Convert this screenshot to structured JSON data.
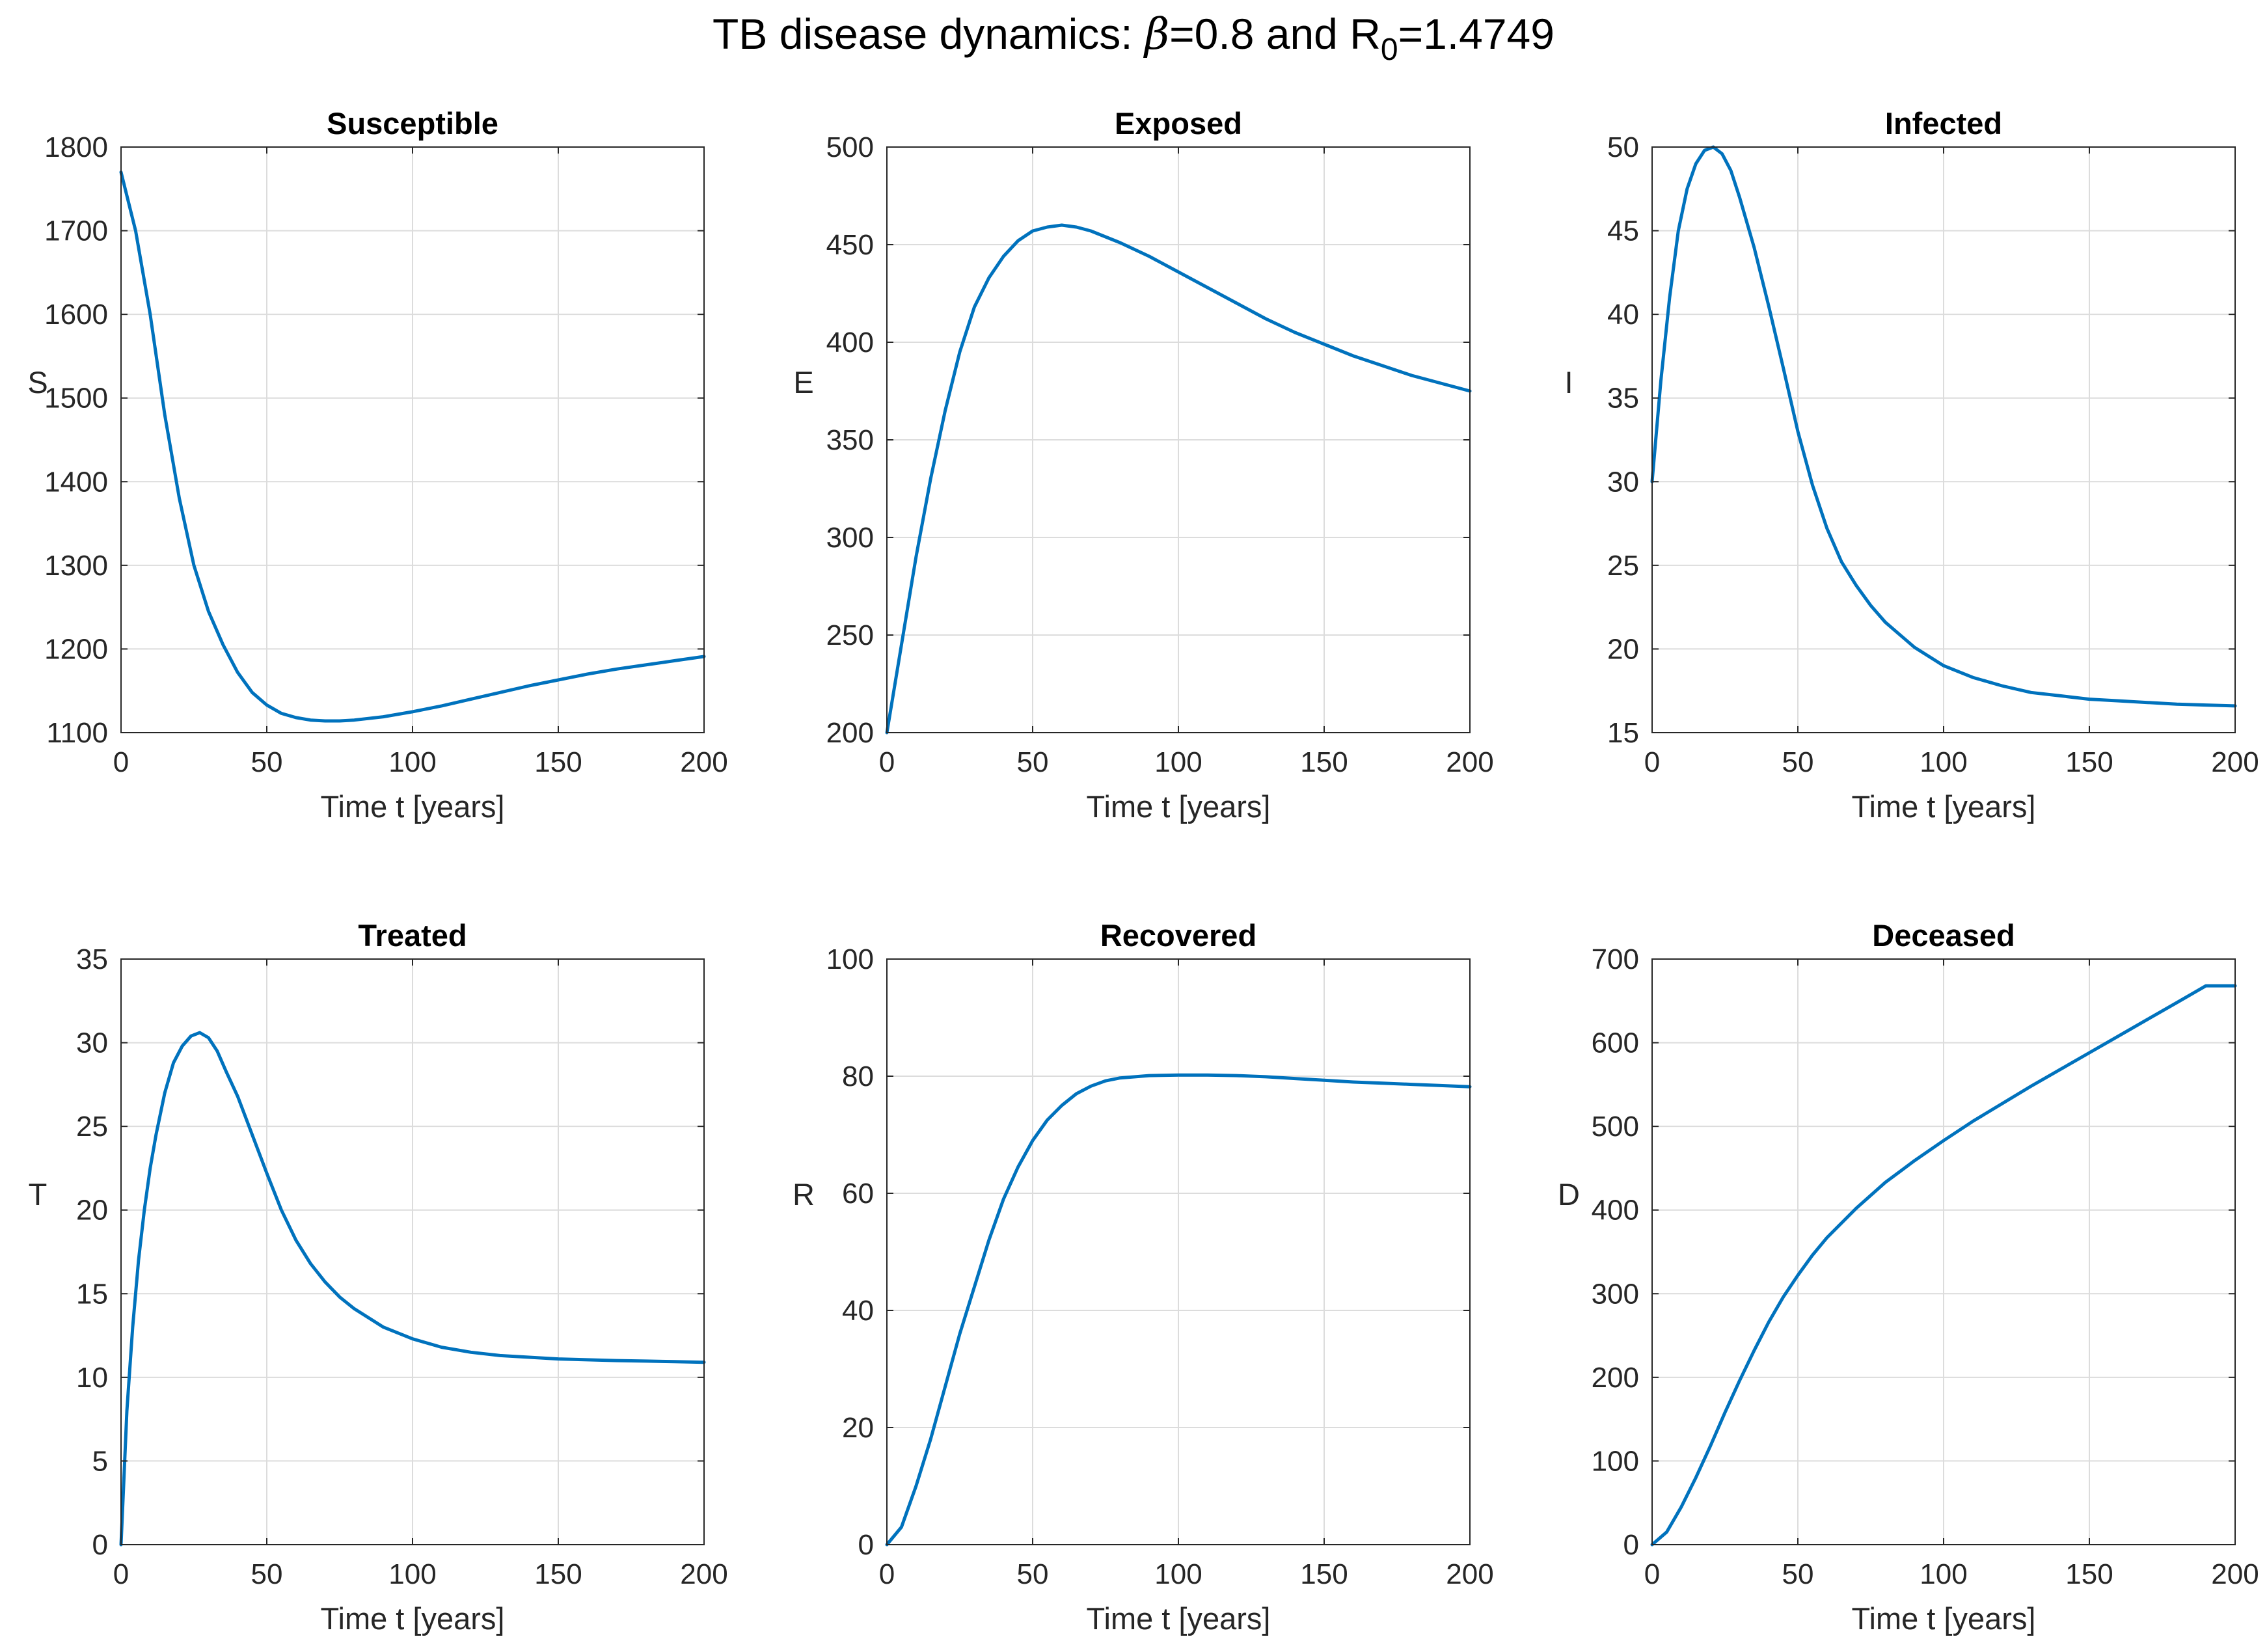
{
  "figure": {
    "title_prefix": "TB disease dynamics: ",
    "beta_symbol": "β",
    "title_mid": "=0.8 and R",
    "r0_subscript": "0",
    "title_suffix": "=1.4749"
  },
  "colors": {
    "line": "#0072BD",
    "axis": "#262626",
    "grid": "#dcdcdc",
    "background": "#ffffff"
  },
  "chart_data": [
    {
      "type": "line",
      "title": "Susceptible",
      "xlabel": "Time t [years]",
      "ylabel": "S",
      "xlim": [
        0,
        200
      ],
      "ylim": [
        1100,
        1800
      ],
      "xticks": [
        0,
        50,
        100,
        150,
        200
      ],
      "yticks": [
        1100,
        1200,
        1300,
        1400,
        1500,
        1600,
        1700,
        1800
      ],
      "grid": true,
      "series": [
        {
          "name": "S",
          "x": [
            0,
            5,
            10,
            15,
            20,
            25,
            30,
            35,
            40,
            45,
            50,
            55,
            60,
            65,
            70,
            75,
            80,
            90,
            100,
            110,
            120,
            130,
            140,
            150,
            160,
            170,
            180,
            190,
            200
          ],
          "values": [
            1770,
            1700,
            1600,
            1480,
            1380,
            1300,
            1245,
            1205,
            1172,
            1148,
            1133,
            1123,
            1118,
            1115,
            1114,
            1114,
            1115,
            1119,
            1125,
            1132,
            1140,
            1148,
            1156,
            1163,
            1170,
            1176,
            1181,
            1186,
            1191
          ]
        }
      ]
    },
    {
      "type": "line",
      "title": "Exposed",
      "xlabel": "Time t [years]",
      "ylabel": "E",
      "xlim": [
        0,
        200
      ],
      "ylim": [
        200,
        500
      ],
      "xticks": [
        0,
        50,
        100,
        150,
        200
      ],
      "yticks": [
        200,
        250,
        300,
        350,
        400,
        450,
        500
      ],
      "grid": true,
      "series": [
        {
          "name": "E",
          "x": [
            0,
            5,
            10,
            15,
            20,
            25,
            30,
            35,
            40,
            45,
            50,
            55,
            60,
            65,
            70,
            80,
            90,
            100,
            110,
            120,
            130,
            140,
            150,
            160,
            170,
            180,
            190,
            200
          ],
          "values": [
            200,
            245,
            290,
            330,
            365,
            395,
            418,
            433,
            444,
            452,
            457,
            459,
            460,
            459,
            457,
            451,
            444,
            436,
            428,
            420,
            412,
            405,
            399,
            393,
            388,
            383,
            379,
            375
          ]
        }
      ]
    },
    {
      "type": "line",
      "title": "Infected",
      "xlabel": "Time t [years]",
      "ylabel": "I",
      "xlim": [
        0,
        200
      ],
      "ylim": [
        15,
        50
      ],
      "xticks": [
        0,
        50,
        100,
        150,
        200
      ],
      "yticks": [
        15,
        20,
        25,
        30,
        35,
        40,
        45,
        50
      ],
      "grid": true,
      "series": [
        {
          "name": "I",
          "x": [
            0,
            3,
            6,
            9,
            12,
            15,
            18,
            21,
            24,
            27,
            30,
            35,
            40,
            45,
            50,
            55,
            60,
            65,
            70,
            75,
            80,
            90,
            100,
            110,
            120,
            130,
            140,
            150,
            160,
            170,
            180,
            190,
            200
          ],
          "values": [
            30,
            36,
            41,
            45,
            47.5,
            49,
            49.8,
            50,
            49.6,
            48.6,
            47,
            44,
            40.5,
            36.8,
            33,
            29.8,
            27.2,
            25.2,
            23.8,
            22.6,
            21.6,
            20.1,
            19,
            18.3,
            17.8,
            17.4,
            17.2,
            17,
            16.9,
            16.8,
            16.7,
            16.65,
            16.6
          ]
        }
      ]
    },
    {
      "type": "line",
      "title": "Treated",
      "xlabel": "Time t [years]",
      "ylabel": "T",
      "xlim": [
        0,
        200
      ],
      "ylim": [
        0,
        35
      ],
      "xticks": [
        0,
        50,
        100,
        150,
        200
      ],
      "yticks": [
        0,
        5,
        10,
        15,
        20,
        25,
        30,
        35
      ],
      "grid": true,
      "series": [
        {
          "name": "T",
          "x": [
            0,
            2,
            4,
            6,
            8,
            10,
            12,
            15,
            18,
            21,
            24,
            27,
            30,
            33,
            36,
            40,
            45,
            50,
            55,
            60,
            65,
            70,
            75,
            80,
            90,
            100,
            110,
            120,
            130,
            140,
            150,
            160,
            170,
            180,
            190,
            200
          ],
          "values": [
            0,
            8,
            13,
            17,
            20,
            22.5,
            24.5,
            27,
            28.8,
            29.8,
            30.4,
            30.6,
            30.3,
            29.5,
            28.3,
            26.8,
            24.5,
            22.2,
            20,
            18.2,
            16.8,
            15.7,
            14.8,
            14.1,
            13,
            12.3,
            11.8,
            11.5,
            11.3,
            11.2,
            11.1,
            11.05,
            11,
            10.97,
            10.94,
            10.9
          ]
        }
      ]
    },
    {
      "type": "line",
      "title": "Recovered",
      "xlabel": "Time t [years]",
      "ylabel": "R",
      "xlim": [
        0,
        200
      ],
      "ylim": [
        0,
        100
      ],
      "xticks": [
        0,
        50,
        100,
        150,
        200
      ],
      "yticks": [
        0,
        20,
        40,
        60,
        80,
        100
      ],
      "grid": true,
      "series": [
        {
          "name": "R",
          "x": [
            0,
            5,
            10,
            15,
            20,
            25,
            30,
            35,
            40,
            45,
            50,
            55,
            60,
            65,
            70,
            75,
            80,
            90,
            100,
            110,
            120,
            130,
            140,
            150,
            160,
            170,
            180,
            190,
            200
          ],
          "values": [
            0,
            3,
            10,
            18,
            27,
            36,
            44,
            52,
            59,
            64.5,
            69,
            72.5,
            75,
            77,
            78.3,
            79.2,
            79.7,
            80.1,
            80.2,
            80.2,
            80.1,
            79.9,
            79.6,
            79.3,
            79,
            78.8,
            78.6,
            78.4,
            78.2
          ]
        }
      ]
    },
    {
      "type": "line",
      "title": "Deceased",
      "xlabel": "Time t [years]",
      "ylabel": "D",
      "xlim": [
        0,
        200
      ],
      "ylim": [
        0,
        700
      ],
      "xticks": [
        0,
        50,
        100,
        150,
        200
      ],
      "yticks": [
        0,
        100,
        200,
        300,
        400,
        500,
        600,
        700
      ],
      "grid": true,
      "series": [
        {
          "name": "D",
          "x": [
            0,
            5,
            10,
            15,
            20,
            25,
            30,
            35,
            40,
            45,
            50,
            55,
            60,
            70,
            80,
            90,
            100,
            110,
            120,
            130,
            140,
            150,
            160,
            170,
            180,
            190,
            200
          ],
          "values": [
            0,
            15,
            45,
            80,
            118,
            158,
            196,
            232,
            266,
            296,
            322,
            346,
            367,
            402,
            433,
            459,
            483,
            506,
            527,
            548,
            568,
            588,
            608,
            628,
            648,
            668,
            668
          ]
        }
      ]
    }
  ]
}
